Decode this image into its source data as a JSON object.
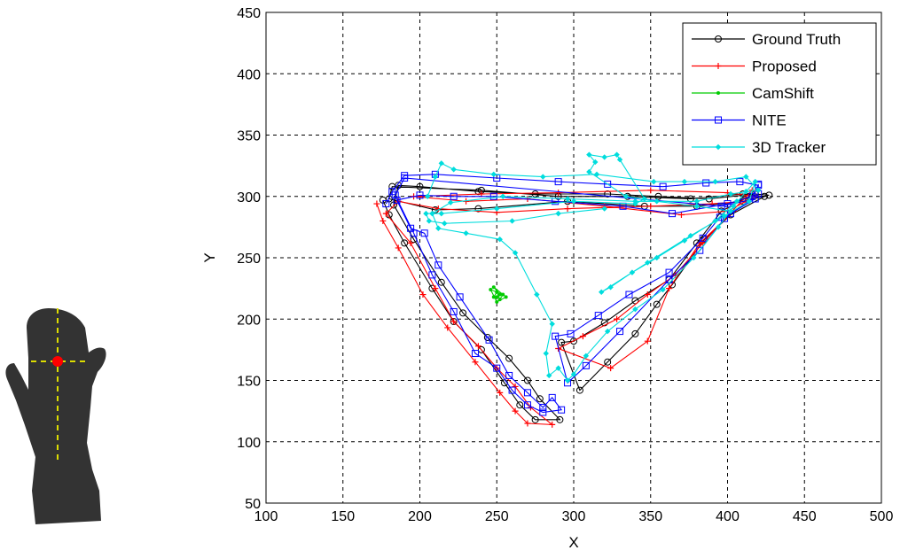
{
  "chart_data": {
    "type": "line",
    "xlabel": "X",
    "ylabel": "Y",
    "xlim": [
      100,
      500
    ],
    "ylim": [
      50,
      450
    ],
    "xticks": [
      100,
      150,
      200,
      250,
      300,
      350,
      400,
      450,
      500
    ],
    "yticks": [
      50,
      100,
      150,
      200,
      250,
      300,
      350,
      400,
      450
    ],
    "grid": true,
    "legend_position": "top-right",
    "series": [
      {
        "name": "Ground Truth",
        "color": "#000000",
        "marker": "circle",
        "points": [
          [
            176,
            297
          ],
          [
            180,
            285
          ],
          [
            190,
            262
          ],
          [
            208,
            225
          ],
          [
            222,
            198
          ],
          [
            240,
            175
          ],
          [
            255,
            148
          ],
          [
            265,
            130
          ],
          [
            275,
            118
          ],
          [
            291,
            118
          ],
          [
            278,
            135
          ],
          [
            270,
            150
          ],
          [
            258,
            168
          ],
          [
            244,
            185
          ],
          [
            228,
            205
          ],
          [
            214,
            230
          ],
          [
            196,
            265
          ],
          [
            183,
            293
          ],
          [
            186,
            309
          ],
          [
            200,
            308
          ],
          [
            238,
            304
          ],
          [
            275,
            302
          ],
          [
            322,
            302
          ],
          [
            355,
            300
          ],
          [
            388,
            298
          ],
          [
            418,
            302
          ],
          [
            427,
            301
          ],
          [
            410,
            296
          ],
          [
            380,
            292
          ],
          [
            346,
            292
          ],
          [
            296,
            296
          ],
          [
            238,
            290
          ],
          [
            210,
            289
          ],
          [
            180,
            298
          ],
          [
            182,
            308
          ],
          [
            240,
            305
          ],
          [
            290,
            300
          ],
          [
            335,
            300
          ],
          [
            376,
            298
          ],
          [
            410,
            302
          ],
          [
            424,
            300
          ],
          [
            402,
            285
          ],
          [
            385,
            265
          ],
          [
            364,
            228
          ],
          [
            354,
            212
          ],
          [
            340,
            188
          ],
          [
            322,
            165
          ],
          [
            304,
            142
          ],
          [
            292,
            181
          ],
          [
            300,
            182
          ],
          [
            320,
            197
          ],
          [
            340,
            215
          ],
          [
            362,
            232
          ],
          [
            380,
            262
          ],
          [
            396,
            288
          ],
          [
            414,
            300
          ]
        ]
      },
      {
        "name": "Proposed",
        "color": "#ff0000",
        "marker": "plus",
        "points": [
          [
            172,
            294
          ],
          [
            176,
            280
          ],
          [
            186,
            258
          ],
          [
            202,
            220
          ],
          [
            218,
            193
          ],
          [
            236,
            165
          ],
          [
            252,
            140
          ],
          [
            262,
            125
          ],
          [
            270,
            115
          ],
          [
            286,
            114
          ],
          [
            272,
            128
          ],
          [
            262,
            145
          ],
          [
            250,
            160
          ],
          [
            238,
            178
          ],
          [
            222,
            198
          ],
          [
            210,
            225
          ],
          [
            194,
            262
          ],
          [
            178,
            286
          ],
          [
            186,
            296
          ],
          [
            212,
            290
          ],
          [
            250,
            287
          ],
          [
            296,
            290
          ],
          [
            350,
            292
          ],
          [
            390,
            294
          ],
          [
            412,
            296
          ],
          [
            400,
            288
          ],
          [
            370,
            285
          ],
          [
            320,
            292
          ],
          [
            270,
            298
          ],
          [
            230,
            296
          ],
          [
            196,
            300
          ],
          [
            240,
            302
          ],
          [
            290,
            303
          ],
          [
            350,
            305
          ],
          [
            400,
            303
          ],
          [
            418,
            300
          ],
          [
            404,
            288
          ],
          [
            382,
            262
          ],
          [
            362,
            225
          ],
          [
            348,
            182
          ],
          [
            324,
            160
          ],
          [
            290,
            176
          ],
          [
            306,
            186
          ],
          [
            328,
            200
          ],
          [
            348,
            220
          ],
          [
            366,
            236
          ],
          [
            384,
            262
          ],
          [
            400,
            284
          ],
          [
            416,
            305
          ]
        ]
      },
      {
        "name": "CamShift",
        "color": "#00cc00",
        "marker": "dot",
        "points": [
          [
            248,
            218
          ],
          [
            250,
            222
          ],
          [
            252,
            216
          ],
          [
            254,
            220
          ],
          [
            246,
            224
          ],
          [
            250,
            214
          ],
          [
            256,
            218
          ],
          [
            248,
            226
          ],
          [
            252,
            220
          ],
          [
            250,
            218
          ]
        ]
      },
      {
        "name": "NITE",
        "color": "#0000ff",
        "marker": "square",
        "points": [
          [
            178,
            294
          ],
          [
            182,
            304
          ],
          [
            190,
            317
          ],
          [
            210,
            318
          ],
          [
            250,
            315
          ],
          [
            290,
            312
          ],
          [
            322,
            310
          ],
          [
            358,
            308
          ],
          [
            386,
            311
          ],
          [
            408,
            312
          ],
          [
            420,
            309
          ],
          [
            416,
            300
          ],
          [
            400,
            294
          ],
          [
            364,
            286
          ],
          [
            332,
            292
          ],
          [
            288,
            296
          ],
          [
            248,
            300
          ],
          [
            222,
            300
          ],
          [
            200,
            301
          ],
          [
            185,
            297
          ],
          [
            194,
            274
          ],
          [
            203,
            270
          ],
          [
            212,
            244
          ],
          [
            226,
            218
          ],
          [
            245,
            183
          ],
          [
            258,
            154
          ],
          [
            270,
            140
          ],
          [
            280,
            128
          ],
          [
            286,
            136
          ],
          [
            292,
            126
          ],
          [
            280,
            124
          ],
          [
            270,
            130
          ],
          [
            260,
            142
          ],
          [
            250,
            160
          ],
          [
            236,
            172
          ],
          [
            222,
            206
          ],
          [
            208,
            236
          ],
          [
            196,
            270
          ],
          [
            184,
            301
          ],
          [
            190,
            315
          ],
          [
            396,
            292
          ],
          [
            418,
            298
          ],
          [
            402,
            286
          ],
          [
            395,
            283
          ],
          [
            384,
            266
          ],
          [
            362,
            238
          ],
          [
            336,
            220
          ],
          [
            316,
            203
          ],
          [
            298,
            188
          ],
          [
            288,
            186
          ],
          [
            296,
            148
          ],
          [
            308,
            162
          ],
          [
            330,
            190
          ],
          [
            362,
            232
          ],
          [
            382,
            256
          ],
          [
            398,
            282
          ],
          [
            420,
            302
          ],
          [
            420,
            310
          ]
        ]
      },
      {
        "name": "3D Tracker",
        "color": "#00dddd",
        "marker": "diamond",
        "points": [
          [
            205,
            300
          ],
          [
            210,
            316
          ],
          [
            214,
            327
          ],
          [
            222,
            322
          ],
          [
            248,
            318
          ],
          [
            280,
            316
          ],
          [
            315,
            318
          ],
          [
            352,
            312
          ],
          [
            372,
            312
          ],
          [
            392,
            312
          ],
          [
            412,
            316
          ],
          [
            420,
            305
          ],
          [
            402,
            302
          ],
          [
            380,
            296
          ],
          [
            340,
            296
          ],
          [
            296,
            298
          ],
          [
            254,
            300
          ],
          [
            220,
            295
          ],
          [
            208,
            286
          ],
          [
            212,
            274
          ],
          [
            230,
            270
          ],
          [
            252,
            265
          ],
          [
            262,
            254
          ],
          [
            276,
            220
          ],
          [
            286,
            196
          ],
          [
            282,
            172
          ],
          [
            284,
            154
          ],
          [
            290,
            160
          ],
          [
            296,
            150
          ],
          [
            300,
            155
          ],
          [
            308,
            170
          ],
          [
            322,
            190
          ],
          [
            340,
            208
          ],
          [
            358,
            224
          ],
          [
            378,
            250
          ],
          [
            394,
            275
          ],
          [
            404,
            292
          ],
          [
            412,
            304
          ],
          [
            418,
            312
          ],
          [
            414,
            296
          ],
          [
            398,
            284
          ],
          [
            376,
            268
          ],
          [
            348,
            246
          ],
          [
            318,
            222
          ],
          [
            324,
            226
          ],
          [
            338,
            238
          ],
          [
            354,
            250
          ],
          [
            372,
            264
          ],
          [
            392,
            280
          ],
          [
            406,
            296
          ],
          [
            402,
            288
          ],
          [
            380,
            292
          ],
          [
            354,
            296
          ],
          [
            334,
            300
          ],
          [
            310,
            320
          ],
          [
            314,
            328
          ],
          [
            310,
            334
          ],
          [
            320,
            332
          ],
          [
            328,
            334
          ],
          [
            330,
            330
          ],
          [
            346,
            298
          ],
          [
            340,
            294
          ],
          [
            300,
            296
          ],
          [
            250,
            290
          ],
          [
            214,
            286
          ],
          [
            204,
            286
          ],
          [
            206,
            280
          ],
          [
            216,
            278
          ],
          [
            260,
            280
          ],
          [
            290,
            286
          ],
          [
            320,
            290
          ]
        ]
      }
    ]
  },
  "inset": {
    "description_icon": "hand-silhouette-icon",
    "hand_color": "#333333",
    "axis_color": "#dddd00",
    "center_color": "#ff0000"
  }
}
